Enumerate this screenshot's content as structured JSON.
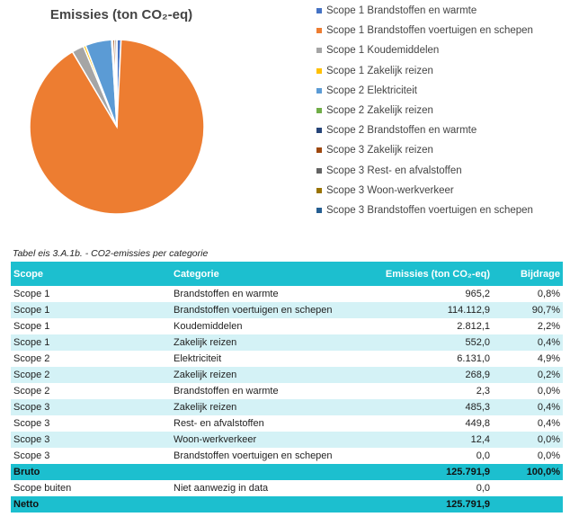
{
  "chart_data": {
    "type": "pie",
    "title": "Emissies (ton CO₂-eq)",
    "legend_position": "right",
    "categories": [
      "Scope 1 Brandstoffen en warmte",
      "Scope 1 Brandstoffen voertuigen en schepen",
      "Scope 1 Koudemiddelen",
      "Scope 1 Zakelijk reizen",
      "Scope 2 Elektriciteit",
      "Scope 2 Zakelijk reizen",
      "Scope 2 Brandstoffen en warmte",
      "Scope 3 Zakelijk reizen",
      "Scope 3 Rest- en afvalstoffen",
      "Scope 3 Woon-werkverkeer",
      "Scope 3 Brandstoffen voertuigen en schepen"
    ],
    "values": [
      965.2,
      114112.9,
      2812.1,
      552.0,
      6131.0,
      268.9,
      2.3,
      485.3,
      449.8,
      12.4,
      0.0
    ],
    "colors": [
      "#4472c4",
      "#ed7d31",
      "#a5a5a5",
      "#ffc000",
      "#5b9bd5",
      "#70ad47",
      "#264478",
      "#9e480e",
      "#636363",
      "#997300",
      "#255e91"
    ]
  },
  "table": {
    "caption": "Tabel eis 3.A.1b. - CO2-emissies per categorie",
    "headers": {
      "scope": "Scope",
      "categorie": "Categorie",
      "emissies": "Emissies (ton CO₂-eq)",
      "bijdrage": "Bijdrage"
    },
    "rows": [
      {
        "scope": "Scope 1",
        "categorie": "Brandstoffen en warmte",
        "emissies": "965,2",
        "bijdrage": "0,8%"
      },
      {
        "scope": "Scope 1",
        "categorie": "Brandstoffen voertuigen en schepen",
        "emissies": "114.112,9",
        "bijdrage": "90,7%"
      },
      {
        "scope": "Scope 1",
        "categorie": "Koudemiddelen",
        "emissies": "2.812,1",
        "bijdrage": "2,2%"
      },
      {
        "scope": "Scope 1",
        "categorie": "Zakelijk reizen",
        "emissies": "552,0",
        "bijdrage": "0,4%"
      },
      {
        "scope": "Scope 2",
        "categorie": "Elektriciteit",
        "emissies": "6.131,0",
        "bijdrage": "4,9%"
      },
      {
        "scope": "Scope 2",
        "categorie": "Zakelijk reizen",
        "emissies": "268,9",
        "bijdrage": "0,2%"
      },
      {
        "scope": "Scope 2",
        "categorie": "Brandstoffen en warmte",
        "emissies": "2,3",
        "bijdrage": "0,0%"
      },
      {
        "scope": "Scope 3",
        "categorie": "Zakelijk reizen",
        "emissies": "485,3",
        "bijdrage": "0,4%"
      },
      {
        "scope": "Scope 3",
        "categorie": "Rest- en afvalstoffen",
        "emissies": "449,8",
        "bijdrage": "0,4%"
      },
      {
        "scope": "Scope 3",
        "categorie": "Woon-werkverkeer",
        "emissies": "12,4",
        "bijdrage": "0,0%"
      },
      {
        "scope": "Scope 3",
        "categorie": "Brandstoffen voertuigen en schepen",
        "emissies": "0,0",
        "bijdrage": "0,0%"
      }
    ],
    "bruto": {
      "label": "Bruto",
      "emissies": "125.791,9",
      "bijdrage": "100,0%"
    },
    "outside": {
      "scope": "Scope buiten",
      "categorie": "Niet aanwezig in data",
      "emissies": "0,0"
    },
    "netto": {
      "label": "Netto",
      "emissies": "125.791,9"
    }
  }
}
